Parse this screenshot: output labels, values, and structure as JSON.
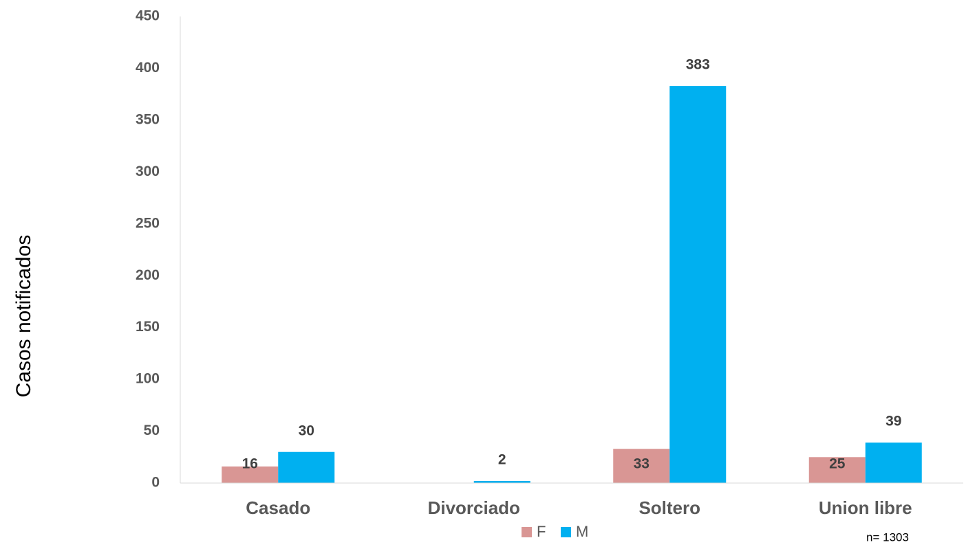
{
  "chart_data": {
    "type": "bar",
    "y_label": "Casos notificados",
    "categories": [
      "Casado",
      "Divorciado",
      "Soltero",
      "Union libre"
    ],
    "series": [
      {
        "name": "F",
        "color": "#d99694",
        "values": [
          16,
          null,
          33,
          25
        ]
      },
      {
        "name": "M",
        "color": "#00b0f0",
        "values": [
          30,
          2,
          383,
          39
        ]
      }
    ],
    "ylim": [
      0,
      450
    ],
    "yticks": [
      0,
      50,
      100,
      150,
      200,
      250,
      300,
      350,
      400,
      450
    ],
    "grid": false,
    "legend": "bottom",
    "annotation": "n= 1303"
  }
}
